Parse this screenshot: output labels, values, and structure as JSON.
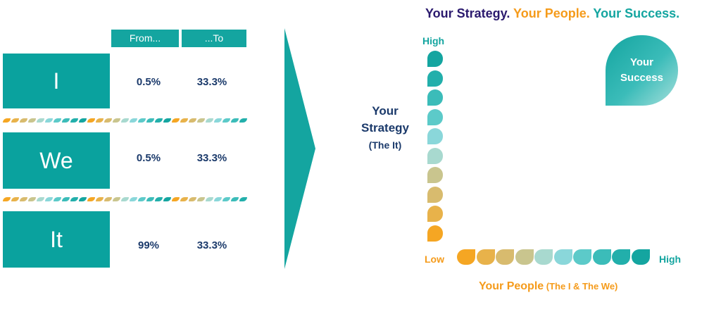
{
  "table": {
    "headers": [
      "From...",
      "...To"
    ],
    "rows": [
      {
        "label": "I",
        "from": "0.5%",
        "to": "33.3%"
      },
      {
        "label": "We",
        "from": "0.5%",
        "to": "33.3%"
      },
      {
        "label": "It",
        "from": "99%",
        "to": "33.3%"
      }
    ]
  },
  "headline": {
    "strategy": "Your Strategy.",
    "people": " Your People.",
    "success": " Your Success."
  },
  "y_axis": {
    "title": "Your Strategy",
    "subtitle": "(The It)",
    "high": "High",
    "low": "Low"
  },
  "x_axis": {
    "title": "Your People",
    "subtitle": " (The I & The We)",
    "high": "High"
  },
  "success_bubble": "Your Success",
  "colors": {
    "teal": "#14a5a0",
    "navy": "#1b3a6b",
    "orange": "#f59b1b",
    "purple": "#2b1a6e",
    "gradient": [
      "#f5a623",
      "#e8b24a",
      "#d8bb6e",
      "#c9c58e",
      "#a8d9cf",
      "#8ad7da",
      "#5ccac9",
      "#3bbcb9",
      "#22afab",
      "#14a5a0"
    ]
  }
}
